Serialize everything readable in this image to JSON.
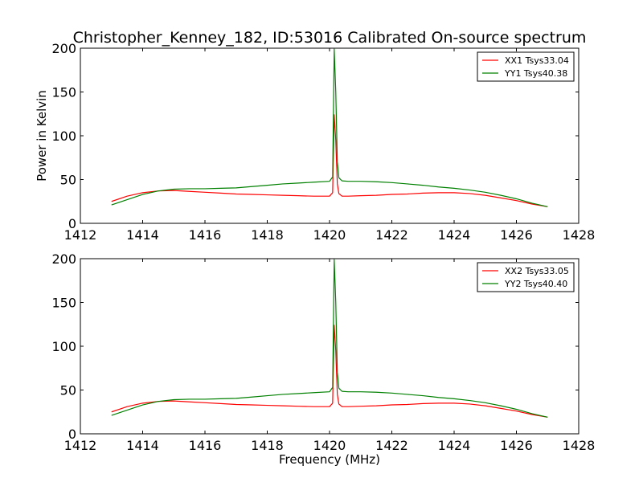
{
  "figure": {
    "title": "Christopher_Kenney_182, ID:53016 Calibrated On-source spectrum"
  },
  "chart_data": [
    {
      "type": "line",
      "ylabel": "Power in Kelvin",
      "xlabel": "",
      "xlim": [
        1412,
        1428
      ],
      "ylim": [
        0,
        200
      ],
      "xticks": [
        1412,
        1414,
        1416,
        1418,
        1420,
        1422,
        1424,
        1426,
        1428
      ],
      "yticks": [
        0,
        50,
        100,
        150,
        200
      ],
      "legend_position": "top-right",
      "series": [
        {
          "name": "XX1 Tsys33.04",
          "color": "#ff0000",
          "x": [
            1413.0,
            1413.5,
            1414.0,
            1414.5,
            1415.0,
            1415.5,
            1416.0,
            1416.5,
            1417.0,
            1417.5,
            1418.0,
            1418.5,
            1419.0,
            1419.5,
            1420.0,
            1420.1,
            1420.15,
            1420.2,
            1420.25,
            1420.3,
            1420.4,
            1420.6,
            1421.0,
            1421.5,
            1422.0,
            1422.5,
            1423.0,
            1423.5,
            1424.0,
            1424.5,
            1425.0,
            1425.5,
            1426.0,
            1426.5,
            1427.0
          ],
          "y": [
            25,
            31,
            35,
            37,
            37.5,
            36.5,
            35.5,
            34.5,
            33.5,
            33,
            32.5,
            32,
            31.5,
            31,
            31,
            35,
            124,
            95,
            45,
            34,
            31,
            31,
            31.5,
            32,
            33,
            33.5,
            34.5,
            35,
            35,
            34,
            32,
            29,
            26,
            22,
            19
          ]
        },
        {
          "name": "YY1 Tsys40.38",
          "color": "#008000",
          "x": [
            1413.0,
            1413.5,
            1414.0,
            1414.5,
            1415.0,
            1415.5,
            1416.0,
            1416.5,
            1417.0,
            1417.5,
            1418.0,
            1418.5,
            1419.0,
            1419.5,
            1420.0,
            1420.1,
            1420.15,
            1420.2,
            1420.25,
            1420.3,
            1420.4,
            1420.6,
            1421.0,
            1421.5,
            1422.0,
            1422.5,
            1423.0,
            1423.5,
            1424.0,
            1424.5,
            1425.0,
            1425.5,
            1426.0,
            1426.5,
            1427.0
          ],
          "y": [
            21,
            27,
            33,
            37,
            39,
            39.5,
            39.5,
            40,
            40.5,
            42,
            43.5,
            45,
            46,
            47,
            48,
            53,
            199,
            150,
            70,
            52,
            48.5,
            48,
            48,
            47.5,
            46.5,
            45,
            43.5,
            41.5,
            40,
            38,
            35.5,
            32,
            28,
            23,
            19
          ]
        }
      ]
    },
    {
      "type": "line",
      "ylabel": "",
      "xlabel": "Frequency (MHz)",
      "xlim": [
        1412,
        1428
      ],
      "ylim": [
        0,
        200
      ],
      "xticks": [
        1412,
        1414,
        1416,
        1418,
        1420,
        1422,
        1424,
        1426,
        1428
      ],
      "yticks": [
        0,
        50,
        100,
        150,
        200
      ],
      "legend_position": "top-right",
      "series": [
        {
          "name": "XX2 Tsys33.05",
          "color": "#ff0000",
          "x": [
            1413.0,
            1413.5,
            1414.0,
            1414.5,
            1415.0,
            1415.5,
            1416.0,
            1416.5,
            1417.0,
            1417.5,
            1418.0,
            1418.5,
            1419.0,
            1419.5,
            1420.0,
            1420.1,
            1420.15,
            1420.2,
            1420.25,
            1420.3,
            1420.4,
            1420.6,
            1421.0,
            1421.5,
            1422.0,
            1422.5,
            1423.0,
            1423.5,
            1424.0,
            1424.5,
            1425.0,
            1425.5,
            1426.0,
            1426.5,
            1427.0
          ],
          "y": [
            25,
            31,
            35,
            37,
            37.5,
            36.5,
            35.5,
            34.5,
            33.5,
            33,
            32.5,
            32,
            31.5,
            31,
            31,
            35,
            124,
            95,
            45,
            34,
            31,
            31,
            31.5,
            32,
            33,
            33.5,
            34.5,
            35,
            35,
            34,
            32,
            29,
            26,
            22,
            19
          ]
        },
        {
          "name": "YY2 Tsys40.40",
          "color": "#008000",
          "x": [
            1413.0,
            1413.5,
            1414.0,
            1414.5,
            1415.0,
            1415.5,
            1416.0,
            1416.5,
            1417.0,
            1417.5,
            1418.0,
            1418.5,
            1419.0,
            1419.5,
            1420.0,
            1420.1,
            1420.15,
            1420.2,
            1420.25,
            1420.3,
            1420.4,
            1420.6,
            1421.0,
            1421.5,
            1422.0,
            1422.5,
            1423.0,
            1423.5,
            1424.0,
            1424.5,
            1425.0,
            1425.5,
            1426.0,
            1426.5,
            1427.0
          ],
          "y": [
            21,
            27,
            33,
            37,
            39,
            39.5,
            39.5,
            40,
            40.5,
            42,
            43.5,
            45,
            46,
            47,
            48,
            53,
            199,
            150,
            70,
            52,
            48.5,
            48,
            48,
            47.5,
            46.5,
            45,
            43.5,
            41.5,
            40,
            38,
            35.5,
            32,
            28,
            23,
            19
          ]
        }
      ]
    }
  ]
}
